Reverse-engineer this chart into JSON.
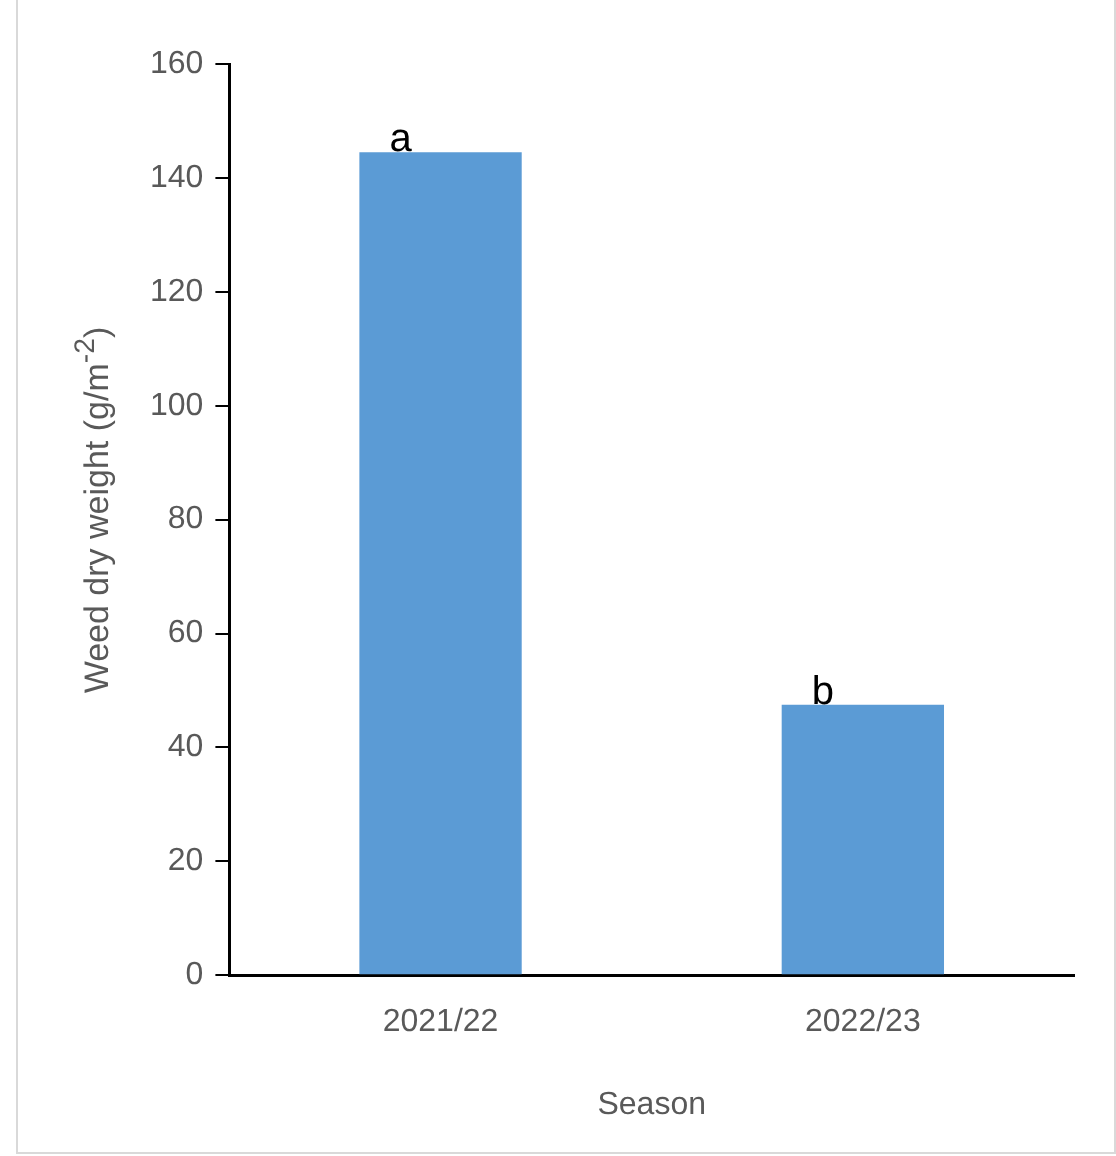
{
  "chart_data": {
    "type": "bar",
    "categories": [
      "2021/22",
      "2022/23"
    ],
    "values": [
      144.5,
      47.5
    ],
    "color": "#5b9bd5",
    "ylim": [
      0,
      160
    ],
    "yticks": [
      0,
      20,
      40,
      60,
      80,
      100,
      120,
      140,
      160
    ],
    "grid": false,
    "xlabel": "Season",
    "ylabel": "Weed dry weight (g/m$^{-2}$)",
    "annotations": [
      {
        "text": "a",
        "x": "2021/22",
        "y": 144.5
      },
      {
        "text": "b",
        "x": "2022/23",
        "y": 47.5
      }
    ]
  }
}
